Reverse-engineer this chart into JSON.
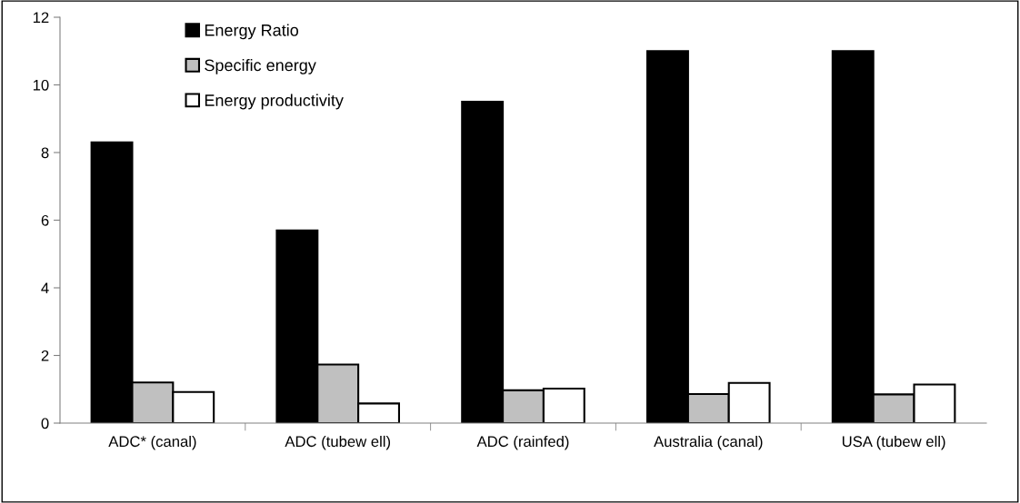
{
  "chart_data": {
    "type": "bar",
    "categories": [
      "ADC* (canal)",
      "ADC (tubew ell)",
      "ADC (rainfed)",
      "Australia (canal)",
      "USA (tubew ell)"
    ],
    "series": [
      {
        "name": "Energy Ratio",
        "color": "#000000",
        "values": [
          8.3,
          5.7,
          9.5,
          11.0,
          11.0
        ]
      },
      {
        "name": "Specific energy",
        "color": "#c0c0c0",
        "values": [
          1.2,
          1.73,
          0.97,
          0.86,
          0.85
        ]
      },
      {
        "name": "Energy productivity",
        "color": "#ffffff",
        "values": [
          0.92,
          0.58,
          1.02,
          1.19,
          1.14
        ]
      }
    ],
    "ylim": [
      0,
      12
    ],
    "yticks": [
      0,
      2,
      4,
      6,
      8,
      10,
      12
    ],
    "grid": false,
    "legend": "top left"
  }
}
